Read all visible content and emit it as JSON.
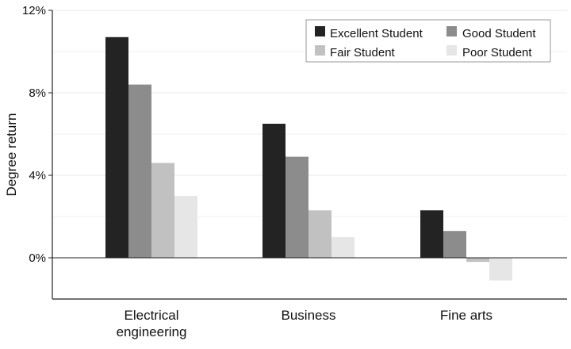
{
  "chart_data": {
    "type": "bar",
    "title": "",
    "xlabel": "",
    "ylabel": "Degree return",
    "categories": [
      "Electrical\nengineering",
      "Business",
      "Fine arts"
    ],
    "ylim": [
      -2,
      12
    ],
    "yticks": [
      0,
      4,
      8,
      12
    ],
    "ytick_labels": [
      "0%",
      "4%",
      "8%",
      "12%"
    ],
    "grid": true,
    "legend_position": "top-right",
    "series": [
      {
        "name": "Excellent Student",
        "color": "#232323",
        "values": [
          10.7,
          6.5,
          2.3
        ]
      },
      {
        "name": "Good Student",
        "color": "#8c8c8c",
        "values": [
          8.4,
          4.9,
          1.3
        ]
      },
      {
        "name": "Fair Student",
        "color": "#c1c1c1",
        "values": [
          4.6,
          2.3,
          -0.2
        ]
      },
      {
        "name": "Poor Student",
        "color": "#e6e6e6",
        "values": [
          3.0,
          1.0,
          -1.1
        ]
      }
    ]
  }
}
